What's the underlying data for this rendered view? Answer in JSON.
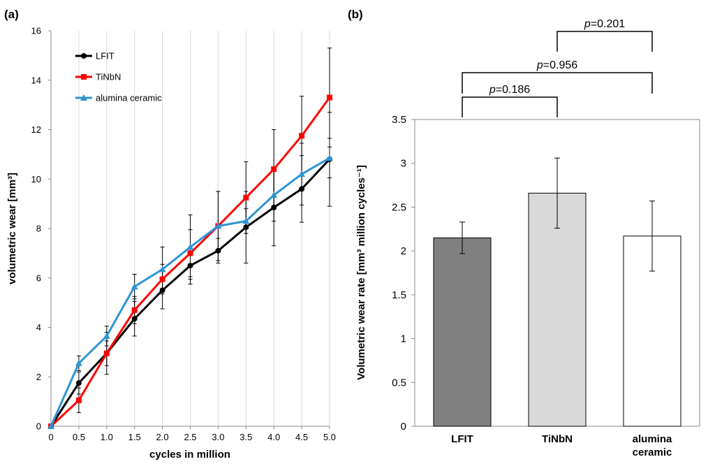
{
  "chart_data": [
    {
      "panel_label": "(a)",
      "type": "line",
      "xlabel": "cycles in million",
      "ylabel": "volumetric wear [mm³]",
      "x": [
        0,
        0.5,
        1.0,
        1.5,
        2.0,
        2.5,
        3.0,
        3.5,
        4.0,
        4.5,
        5.0
      ],
      "x_tick_labels": [
        "0",
        "0.5",
        "1.0",
        "1.5",
        "2.0",
        "2.5",
        "3.0",
        "3.5",
        "4.0",
        "4.5",
        "5.0"
      ],
      "ylim": [
        0,
        16
      ],
      "y_ticks": [
        0,
        2,
        4,
        6,
        8,
        10,
        12,
        14,
        16
      ],
      "legend_position": "top-left",
      "series": [
        {
          "name": "LFIT",
          "color": "#000000",
          "marker": "circle",
          "values": [
            0,
            1.75,
            2.95,
            4.35,
            5.5,
            6.5,
            7.1,
            8.05,
            8.85,
            9.6,
            10.8
          ],
          "errors": [
            0,
            0.45,
            0.85,
            0.7,
            0.75,
            0.75,
            0.5,
            1.45,
            1.55,
            1.35,
            1.9
          ]
        },
        {
          "name": "TiNbN",
          "color": "#ff0000",
          "marker": "square",
          "values": [
            0,
            1.05,
            2.95,
            4.7,
            5.95,
            7.0,
            8.1,
            9.25,
            10.4,
            11.75,
            13.3
          ],
          "errors": [
            0,
            0.5,
            0.5,
            0.55,
            0.6,
            0.95,
            1.4,
            1.45,
            1.6,
            1.6,
            2.0
          ]
        },
        {
          "name": "alumina ceramic",
          "color": "#2e95d3",
          "marker": "triangle",
          "values": [
            0,
            2.55,
            3.65,
            5.65,
            6.35,
            7.25,
            8.1,
            8.3,
            9.35,
            10.2,
            10.85
          ],
          "errors": [
            0,
            0.3,
            0.4,
            0.5,
            0.9,
            1.3,
            1.4,
            0.5,
            1.05,
            1.25,
            0.8
          ]
        }
      ]
    },
    {
      "panel_label": "(b)",
      "type": "bar",
      "ylabel": "Volumetric wear rate [mm³ million cycles⁻¹]",
      "categories": [
        [
          "LFIT"
        ],
        [
          "TiNbN"
        ],
        [
          "alumina",
          "ceramic"
        ]
      ],
      "values": [
        2.15,
        2.66,
        2.17
      ],
      "errors": [
        0.18,
        0.4,
        0.4
      ],
      "bar_colors": [
        "#808080",
        "#d9d9d9",
        "#ffffff"
      ],
      "ylim": [
        0,
        3.5
      ],
      "y_ticks": [
        0,
        0.5,
        1,
        1.5,
        2,
        2.5,
        3,
        3.5
      ],
      "y_tick_labels": [
        "0",
        "0.5",
        "1",
        "1.5",
        "2",
        "2.5",
        "3",
        "3.5"
      ],
      "significance": [
        {
          "from": 0,
          "to": 1,
          "p": "0.186"
        },
        {
          "from": 0,
          "to": 2,
          "p": "0.956"
        },
        {
          "from": 1,
          "to": 2,
          "p": "0.201"
        }
      ]
    }
  ]
}
